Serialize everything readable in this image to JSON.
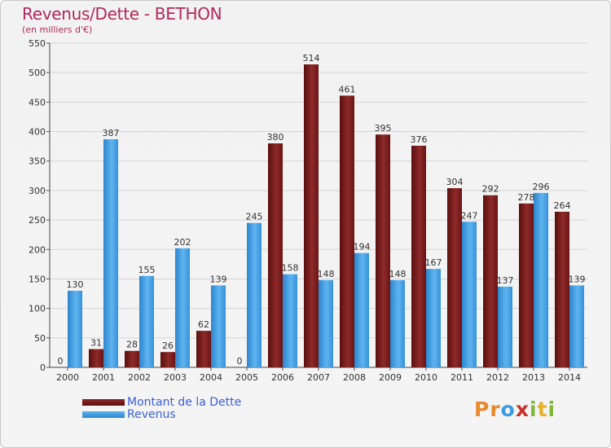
{
  "colors": {
    "dette": "#7a1a1a",
    "revenus": "#3b9be0",
    "title": "#b0285a",
    "legend_text": "#3a5fd8"
  },
  "logo": {
    "text": "Proxiti",
    "letters": [
      {
        "ch": "P",
        "color": "#e88a2a"
      },
      {
        "ch": "r",
        "color": "#e88a2a"
      },
      {
        "ch": "o",
        "color": "#3a9be0"
      },
      {
        "ch": "x",
        "color": "#c8302a"
      },
      {
        "ch": "i",
        "color": "#7fb838"
      },
      {
        "ch": "t",
        "color": "#e8b02a"
      },
      {
        "ch": "i",
        "color": "#7fb838"
      }
    ]
  },
  "chart_data": {
    "type": "bar",
    "title": "Revenus/Dette - BETHON",
    "subtitle": "(en milliers d'€)",
    "xlabel": "",
    "ylabel": "",
    "ylim": [
      0,
      550
    ],
    "yticks": [
      0,
      50,
      100,
      150,
      200,
      250,
      300,
      350,
      400,
      450,
      500,
      550
    ],
    "grid": true,
    "legend_position": "bottom-left",
    "categories": [
      "2000",
      "2001",
      "2002",
      "2003",
      "2004",
      "2005",
      "2006",
      "2007",
      "2008",
      "2009",
      "2010",
      "2011",
      "2012",
      "2013",
      "2014"
    ],
    "series": [
      {
        "name": "Montant de la Dette",
        "color": "#7a1a1a",
        "values": [
          0,
          31,
          28,
          26,
          62,
          0,
          380,
          514,
          461,
          395,
          376,
          304,
          292,
          278,
          264
        ]
      },
      {
        "name": "Revenus",
        "color": "#3b9be0",
        "values": [
          130,
          387,
          155,
          202,
          139,
          245,
          158,
          148,
          194,
          148,
          167,
          247,
          137,
          296,
          139
        ]
      }
    ]
  }
}
